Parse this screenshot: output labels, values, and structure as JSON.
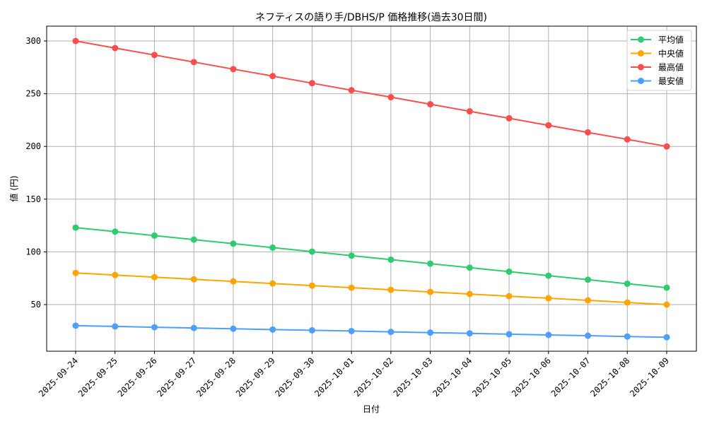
{
  "chart_data": {
    "type": "line",
    "title": "ネフティスの語り手/DBHS/P 価格推移(過去30日間)",
    "xlabel": "日付",
    "ylabel": "値 (円)",
    "x": [
      "2025-09-24",
      "2025-09-25",
      "2025-09-26",
      "2025-09-27",
      "2025-09-28",
      "2025-09-29",
      "2025-09-30",
      "2025-10-01",
      "2025-10-02",
      "2025-10-03",
      "2025-10-04",
      "2025-10-05",
      "2025-10-06",
      "2025-10-07",
      "2025-10-08",
      "2025-10-09"
    ],
    "yticks": [
      50,
      100,
      150,
      200,
      250,
      300
    ],
    "ylim": [
      5.8,
      314
    ],
    "grid": true,
    "legend_position": "upper right",
    "series": [
      {
        "name": "平均値",
        "color": "#2ecc71",
        "values": [
          123.0,
          119.2,
          115.4,
          111.6,
          107.8,
          104.0,
          100.2,
          96.4,
          92.6,
          88.8,
          85.0,
          81.2,
          77.4,
          73.6,
          69.8,
          66.0
        ]
      },
      {
        "name": "中央値",
        "color": "#ffa500",
        "values": [
          80,
          78,
          76,
          74,
          72,
          70,
          68,
          66,
          64,
          62,
          60,
          58,
          56,
          54,
          52,
          50
        ]
      },
      {
        "name": "最高値",
        "color": "#ff4d4d",
        "values": [
          300.0,
          293.3,
          286.7,
          280.0,
          273.3,
          266.7,
          260.0,
          253.3,
          246.7,
          240.0,
          233.3,
          226.7,
          220.0,
          213.3,
          206.7,
          200.0
        ]
      },
      {
        "name": "最安値",
        "color": "#4d9fff",
        "values": [
          30.0,
          29.3,
          28.5,
          27.8,
          27.1,
          26.3,
          25.6,
          24.9,
          24.1,
          23.4,
          22.7,
          21.9,
          21.2,
          20.5,
          19.7,
          19.0
        ]
      }
    ]
  }
}
